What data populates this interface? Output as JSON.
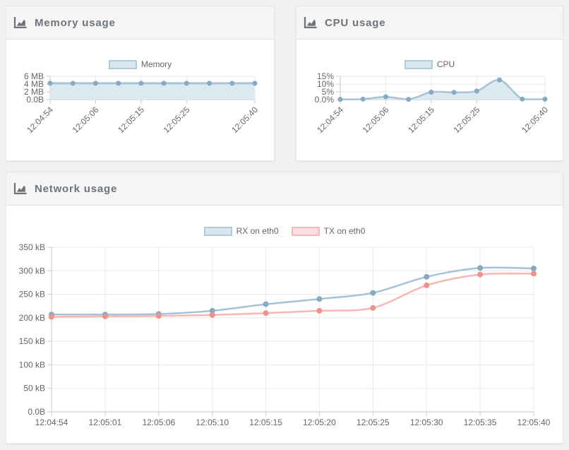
{
  "page": {
    "background_color": "#f0f0f0",
    "panel_header_color": "#f5f5f5",
    "axis_label_color": "#666666"
  },
  "chart_data": [
    {
      "id": "memory-usage",
      "type": "area",
      "title": "Memory usage",
      "header_icon": "area-chart-icon",
      "legend_position": "top",
      "grid": true,
      "unit": "MB",
      "x": [
        "12:04:54",
        "12:05:01",
        "12:05:06",
        "12:05:10",
        "12:05:15",
        "12:05:20",
        "12:05:25",
        "12:05:30",
        "12:05:35",
        "12:05:40"
      ],
      "x_tick_indices": [
        0,
        2,
        4,
        6,
        9
      ],
      "x_tick_labels": [
        "12:04:54",
        "12:05:06",
        "12:05:15",
        "12:05:25",
        "12:05:40"
      ],
      "ylim": [
        0,
        6
      ],
      "y_ticks": [
        {
          "value": 0,
          "label": "0.0B"
        },
        {
          "value": 2,
          "label": "2 MB"
        },
        {
          "value": 4,
          "label": "4 MB"
        },
        {
          "value": 6,
          "label": "6 MB"
        }
      ],
      "series": [
        {
          "name": "Memory",
          "values": [
            4.2,
            4.2,
            4.2,
            4.2,
            4.2,
            4.2,
            4.2,
            4.2,
            4.2,
            4.2
          ],
          "color": {
            "line": "#a6c4d6",
            "fill": "#dde9f1",
            "point": "#85aac1",
            "legend_fill": "#d9e6ef",
            "legend_border": "#b0cada"
          }
        }
      ]
    },
    {
      "id": "cpu-usage",
      "type": "area",
      "title": "CPU usage",
      "header_icon": "area-chart-icon",
      "legend_position": "top",
      "grid": true,
      "unit": "%",
      "x": [
        "12:04:54",
        "12:05:01",
        "12:05:06",
        "12:05:10",
        "12:05:15",
        "12:05:20",
        "12:05:25",
        "12:05:30",
        "12:05:35",
        "12:05:40"
      ],
      "x_tick_indices": [
        0,
        2,
        4,
        6,
        9
      ],
      "x_tick_labels": [
        "12:04:54",
        "12:05:06",
        "12:05:15",
        "12:05:25",
        "12:05:40"
      ],
      "ylim": [
        0,
        15
      ],
      "y_ticks": [
        {
          "value": 0,
          "label": "0.0%"
        },
        {
          "value": 5,
          "label": "5%"
        },
        {
          "value": 10,
          "label": "10%"
        },
        {
          "value": 15,
          "label": "15%"
        }
      ],
      "series": [
        {
          "name": "CPU",
          "values": [
            0.2,
            0.3,
            1.8,
            0.2,
            4.8,
            4.7,
            5.5,
            12.7,
            0.3,
            0.3
          ],
          "color": {
            "line": "#a6c4d6",
            "fill": "#dde9f1",
            "point": "#85aac1",
            "legend_fill": "#d9e6ef",
            "legend_border": "#b0cada"
          }
        }
      ]
    },
    {
      "id": "network-usage",
      "type": "line",
      "title": "Network usage",
      "header_icon": "area-chart-icon",
      "legend_position": "top",
      "grid": true,
      "unit": "kB",
      "x": [
        "12:04:54",
        "12:05:01",
        "12:05:06",
        "12:05:10",
        "12:05:15",
        "12:05:20",
        "12:05:25",
        "12:05:30",
        "12:05:35",
        "12:05:40"
      ],
      "ylim": [
        0,
        350
      ],
      "y_ticks": [
        {
          "value": 0,
          "label": "0.0B"
        },
        {
          "value": 50,
          "label": "50 kB"
        },
        {
          "value": 100,
          "label": "100 kB"
        },
        {
          "value": 150,
          "label": "150 kB"
        },
        {
          "value": 200,
          "label": "200 kB"
        },
        {
          "value": 250,
          "label": "250 kB"
        },
        {
          "value": 300,
          "label": "300 kB"
        },
        {
          "value": 350,
          "label": "350 kB"
        }
      ],
      "series": [
        {
          "name": "RX on eth0",
          "values": [
            207,
            207,
            208,
            215,
            229,
            240,
            253,
            287,
            306,
            305
          ],
          "color": {
            "line": "#a6c4d6",
            "fill": null,
            "point": "#85aac1",
            "legend_fill": "#d9e6ef",
            "legend_border": "#b0cada"
          }
        },
        {
          "name": "TX on eth0",
          "values": [
            202,
            203,
            204,
            206,
            210,
            215,
            221,
            269,
            292,
            294
          ],
          "color": {
            "line": "#f8b7b3",
            "fill": null,
            "point": "#ef928b",
            "legend_fill": "#fcdede",
            "legend_border": "#f4b9b5"
          }
        }
      ]
    }
  ]
}
